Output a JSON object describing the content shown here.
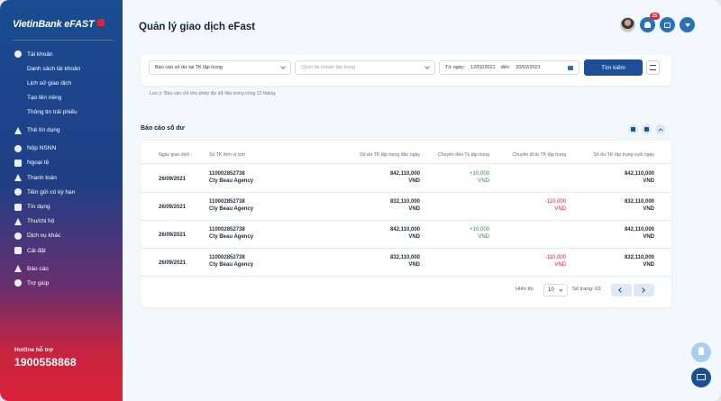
{
  "brand": {
    "name": "VietinBank eFAST"
  },
  "sidebar": {
    "items": [
      {
        "label": "Tài khoản",
        "icon": "wallet-icon",
        "sub": false
      },
      {
        "label": "Danh sách tài khoản",
        "sub": true
      },
      {
        "label": "Lịch sử giao dịch",
        "sub": true
      },
      {
        "label": "Tạo tên riêng",
        "sub": true
      },
      {
        "label": "Thông tin trái phiếu",
        "sub": true
      },
      {
        "label": "Thẻ tín dụng",
        "icon": "card-icon",
        "sub": false
      },
      {
        "label": "Nộp NSNN",
        "icon": "bank-icon",
        "sub": false
      },
      {
        "label": "Ngoại tệ",
        "icon": "currency-icon",
        "sub": false
      },
      {
        "label": "Thanh toán",
        "icon": "payment-icon",
        "sub": false
      },
      {
        "label": "Tiền gửi có kỳ hạn",
        "icon": "deposit-icon",
        "sub": false
      },
      {
        "label": "Tín dụng",
        "icon": "credit-icon",
        "sub": false
      },
      {
        "label": "Thu/chi hộ",
        "icon": "collection-icon",
        "sub": false
      },
      {
        "label": "Dịch vụ khác",
        "icon": "service-icon",
        "sub": false
      },
      {
        "label": "Cài đặt",
        "icon": "gear-icon",
        "sub": false
      },
      {
        "label": "Báo cáo",
        "icon": "report-icon",
        "sub": false
      },
      {
        "label": "Trợ giúp",
        "icon": "help-icon",
        "sub": false
      }
    ],
    "hotline_label": "Hotline hỗ trợ",
    "hotline_number": "1900558868"
  },
  "header": {
    "title": "Quản lý giao dịch eFast",
    "notification_count": "25"
  },
  "filters": {
    "report_type": "Báo cáo số dư tại TK tập trung",
    "account_placeholder": "Chọn tài khoản tập trung",
    "from_label": "Từ ngày:",
    "from_date": "12/02/2021",
    "to_label": "đến:",
    "to_date": "20/02/2021",
    "search_label": "Tìm kiếm",
    "note": "Lưu ý: Báo cáo chỉ cho phép lấy dữ liệu trong vòng 12 tháng."
  },
  "report": {
    "title": "Báo cáo số dư",
    "columns": [
      "Ngày giao dịch",
      "Số TK đơn vị con",
      "Số dư TK tập trung đầu ngày",
      "Chuyển đến Tk tập trung",
      "Chuyển đi từ TK tập trung",
      "Số dư TK tập trung cuối ngày"
    ],
    "rows": [
      {
        "date": "26/09/2021",
        "account": "110002852738",
        "company": "Cty Beau Agency",
        "open": "842,110,000",
        "open_ccy": "VND",
        "in": "+10,000",
        "in_ccy": "VND",
        "out": "",
        "out_ccy": "",
        "close": "842,110,000",
        "close_ccy": "VND"
      },
      {
        "date": "26/09/2021",
        "account": "110002852738",
        "company": "Cty Beau Agency",
        "open": "832,110,000",
        "open_ccy": "VND",
        "in": "",
        "in_ccy": "",
        "out": "-110,000",
        "out_ccy": "VND",
        "close": "832,110,000",
        "close_ccy": "VND"
      },
      {
        "date": "26/09/2021",
        "account": "110002852738",
        "company": "Cty Beau Agency",
        "open": "842,110,000",
        "open_ccy": "VND",
        "in": "+10,000",
        "in_ccy": "VND",
        "out": "",
        "out_ccy": "",
        "close": "842,110,000",
        "close_ccy": "VND"
      },
      {
        "date": "26/09/2021",
        "account": "110002852738",
        "company": "Cty Beau Agency",
        "open": "832,110,000",
        "open_ccy": "VND",
        "in": "",
        "in_ccy": "",
        "out": "-110,000",
        "out_ccy": "VND",
        "close": "832,110,000",
        "close_ccy": "VND"
      }
    ],
    "pagination": {
      "show_label": "Hiển thị",
      "page_size": "10",
      "page_count_label": "Số trang: 03"
    }
  },
  "colors": {
    "primary": "#1d4f95",
    "positive": "#1f9d3a",
    "negative": "#e0203a"
  }
}
